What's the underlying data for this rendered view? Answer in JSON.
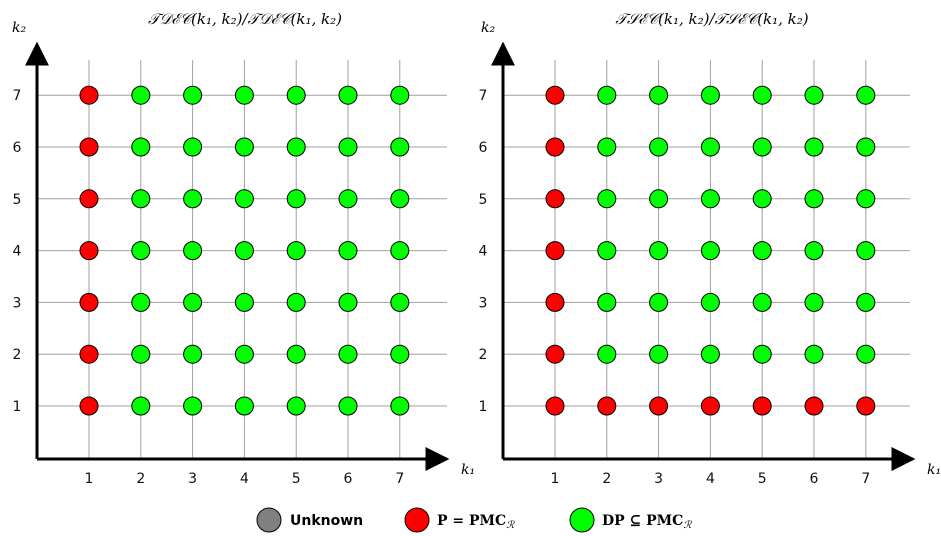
{
  "colors": {
    "unknown": "#808080",
    "p_eq_pmc": "#ff0000",
    "dp_subset_pmc": "#00ff00",
    "grid": "#a0a0a0",
    "axis": "#000000"
  },
  "legend": [
    {
      "label": "Unknown",
      "color_key": "unknown",
      "style": "sans-bold"
    },
    {
      "label": "P = PMC_R",
      "color_key": "p_eq_pmc",
      "style": "serif-bold"
    },
    {
      "label": "DP ⊆ PMC_R",
      "color_key": "dp_subset_pmc",
      "style": "serif-bold"
    }
  ],
  "chart_data": [
    {
      "type": "scatter",
      "title": "TDEC(k1,k2)/TDEC^(k1,k2)",
      "title_display": "𝒯𝒟ℰ𝒞(k₁, k₂)/𝒯𝒟ℰ𝒞(k₁, k₂)",
      "xlabel": "k1",
      "xlabel_display": "k₁",
      "ylabel": "k2",
      "ylabel_display": "k₂",
      "x_ticks": [
        "1",
        "2",
        "3",
        "4",
        "5",
        "6",
        "7"
      ],
      "y_ticks": [
        "1",
        "2",
        "3",
        "4",
        "5",
        "6",
        "7"
      ],
      "grid": true,
      "red_rule": "k1 == 1",
      "points_red": [
        [
          1,
          1
        ],
        [
          1,
          2
        ],
        [
          1,
          3
        ],
        [
          1,
          4
        ],
        [
          1,
          5
        ],
        [
          1,
          6
        ],
        [
          1,
          7
        ]
      ],
      "points_green": "all other (k1,k2) with 2<=k1<=7, 1<=k2<=7"
    },
    {
      "type": "scatter",
      "title": "TSEC(k1,k2)/TSEC^(k1,k2)",
      "title_display": "𝒯𝒮ℰ𝒞(k₁, k₂)/𝒯𝒮ℰ𝒞(k₁, k₂)",
      "xlabel": "k1",
      "xlabel_display": "k₁",
      "ylabel": "k2",
      "ylabel_display": "k₂",
      "x_ticks": [
        "1",
        "2",
        "3",
        "4",
        "5",
        "6",
        "7"
      ],
      "y_ticks": [
        "1",
        "2",
        "3",
        "4",
        "5",
        "6",
        "7"
      ],
      "grid": true,
      "red_rule": "k1 == 1 or k2 == 1",
      "points_red": [
        [
          1,
          1
        ],
        [
          1,
          2
        ],
        [
          1,
          3
        ],
        [
          1,
          4
        ],
        [
          1,
          5
        ],
        [
          1,
          6
        ],
        [
          1,
          7
        ],
        [
          2,
          1
        ],
        [
          3,
          1
        ],
        [
          4,
          1
        ],
        [
          5,
          1
        ],
        [
          6,
          1
        ],
        [
          7,
          1
        ]
      ],
      "points_green": "all other (k1,k2) with 2<=k1<=7, 2<=k2<=7"
    }
  ]
}
